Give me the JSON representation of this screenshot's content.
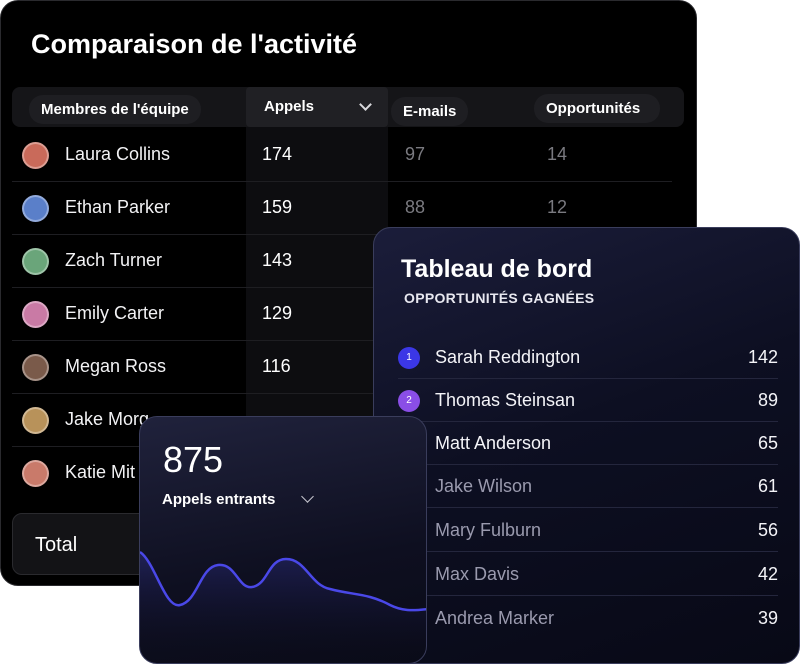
{
  "activity": {
    "title": "Comparaison de l'activité",
    "columns": {
      "members": "Membres de l'équipe",
      "calls": "Appels",
      "emails": "E-mails",
      "opportunities": "Opportunités"
    },
    "rows": [
      {
        "name": "Laura Collins",
        "calls": "174",
        "emails": "97",
        "opportunities": "14",
        "avatar_color": "#c96a5a"
      },
      {
        "name": "Ethan Parker",
        "calls": "159",
        "emails": "88",
        "opportunities": "12",
        "avatar_color": "#5a7fc9"
      },
      {
        "name": "Zach Turner",
        "calls": "143",
        "emails": "",
        "opportunities": "",
        "avatar_color": "#6aa57a"
      },
      {
        "name": "Emily Carter",
        "calls": "129",
        "emails": "",
        "opportunities": "",
        "avatar_color": "#c97aa5"
      },
      {
        "name": "Megan Ross",
        "calls": "116",
        "emails": "",
        "opportunities": "",
        "avatar_color": "#7a5a4a"
      },
      {
        "name": "Jake Morg",
        "calls": "",
        "emails": "",
        "opportunities": "",
        "avatar_color": "#b8925a"
      },
      {
        "name": "Katie Mit",
        "calls": "",
        "emails": "",
        "opportunities": "",
        "avatar_color": "#c97a6a"
      }
    ],
    "total_label": "Total"
  },
  "dashboard": {
    "title": "Tableau de bord",
    "subtitle": "OPPORTUNITÉS GAGNÉES",
    "leaders": [
      {
        "rank": "1",
        "name": "Sarah Reddington",
        "value": "142",
        "badge_color": "#3b37e6"
      },
      {
        "rank": "2",
        "name": "Thomas Steinsan",
        "value": "89",
        "badge_color": "#8a4ee6"
      },
      {
        "rank": "",
        "name": "Matt Anderson",
        "value": "65",
        "badge_color": ""
      },
      {
        "rank": "",
        "name": "Jake Wilson",
        "value": "61",
        "badge_color": ""
      },
      {
        "rank": "",
        "name": "Mary Fulburn",
        "value": "56",
        "badge_color": ""
      },
      {
        "rank": "",
        "name": "Max Davis",
        "value": "42",
        "badge_color": ""
      },
      {
        "rank": "",
        "name": "Andrea Marker",
        "value": "39",
        "badge_color": ""
      }
    ]
  },
  "incoming": {
    "value": "875",
    "label": "Appels entrants",
    "line_color": "#4a48e8"
  }
}
